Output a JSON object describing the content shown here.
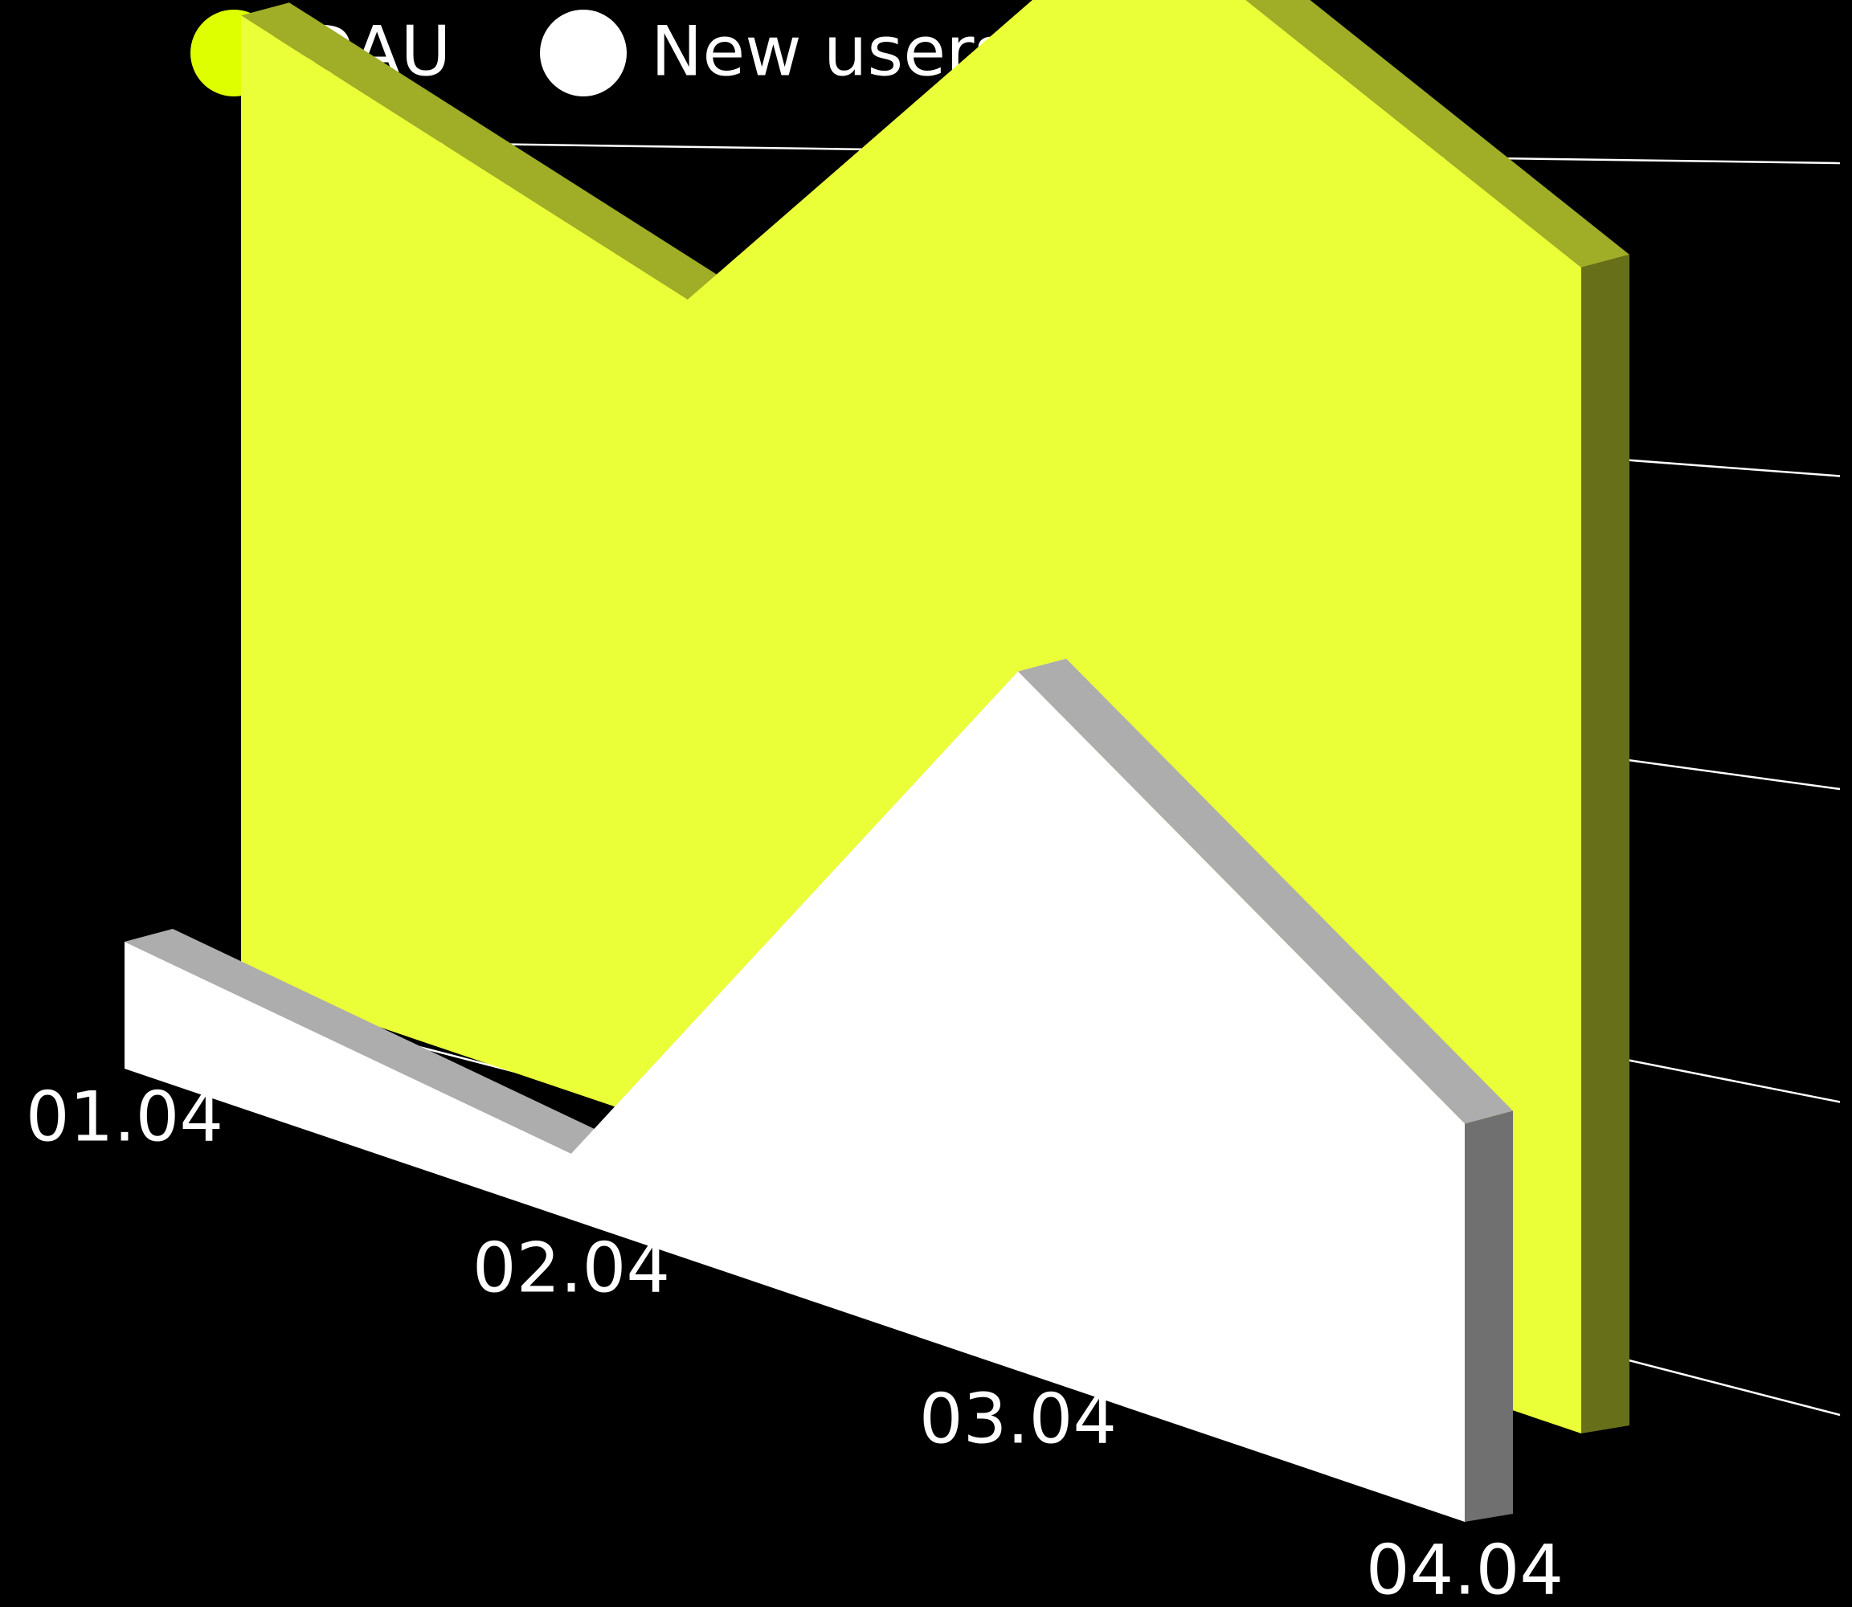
{
  "chart_data": {
    "type": "area3d",
    "categories": [
      "01.04",
      "02.04",
      "03.04",
      "04.04"
    ],
    "series": [
      {
        "name": "DAU",
        "color": "#ebff38",
        "values": [
          76,
          63,
          100,
          82
        ]
      },
      {
        "name": "New users",
        "color": "#ffffff",
        "values": [
          10,
          5,
          51,
          28
        ]
      }
    ],
    "ylim": [
      0,
      100
    ],
    "yticks": [
      0,
      25,
      50,
      75,
      100
    ],
    "grid": true
  }
}
